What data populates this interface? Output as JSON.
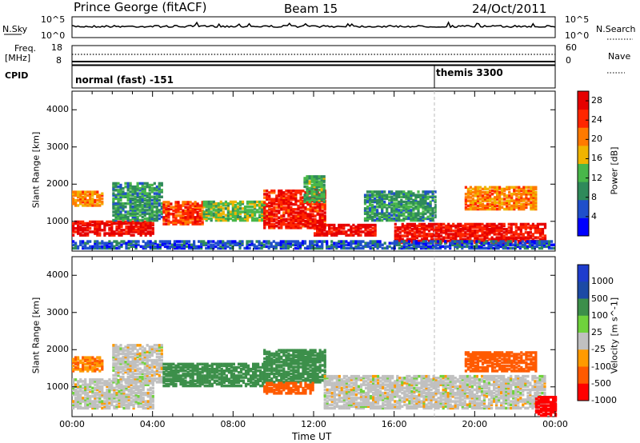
{
  "header": {
    "station": "Prince George (fitACF)",
    "beam": "Beam 15",
    "date": "24/Oct/2011"
  },
  "nsky_panel": {
    "left_label": "N.Sky",
    "right_label": "N.Search",
    "left_ticks": [
      "10^5",
      "10^0"
    ],
    "right_ticks": [
      "10^5",
      "10^0"
    ]
  },
  "freq_panel": {
    "left_label_top": "Freq.",
    "left_label_bottom": "[MHz]",
    "right_label": "Nave",
    "left_ticks": [
      "18",
      "8"
    ],
    "right_ticks": [
      "60",
      "0"
    ]
  },
  "cpid": {
    "label": "CPID",
    "modes": [
      {
        "name": "normal (fast) -151",
        "start_hour": 0
      },
      {
        "name": "themis 3300",
        "start_hour": 18
      }
    ]
  },
  "colors": {
    "power": [
      "#0000ff",
      "#1f4fcb",
      "#2f8a5a",
      "#48b74a",
      "#f0b400",
      "#ff7a00",
      "#ff2600",
      "#e60000"
    ],
    "velocity": [
      "#ff0000",
      "#ff5a00",
      "#ff9a00",
      "#c0c0c0",
      "#6fd23c",
      "#3c8f4a",
      "#1c4aa5",
      "#1e3ccd"
    ]
  },
  "chart_data": [
    {
      "type": "heatmap",
      "title": "",
      "xlabel": "",
      "ylabel": "Slant Range [km]",
      "xlim": [
        0,
        24
      ],
      "ylim": [
        200,
        4500
      ],
      "x_ticks": [
        "00:00",
        "04:00",
        "08:00",
        "12:00",
        "16:00",
        "20:00",
        "00:00"
      ],
      "y_ticks": [
        1000,
        2000,
        3000,
        4000
      ],
      "colorbar": {
        "label": "Power [dB]",
        "ticks": [
          4,
          8,
          12,
          16,
          20,
          24,
          28
        ],
        "range": [
          0,
          30
        ]
      },
      "patches": [
        {
          "hours": [
            0,
            1.5
          ],
          "range_km": [
            1400,
            1800
          ],
          "value": 20
        },
        {
          "hours": [
            0,
            4
          ],
          "range_km": [
            600,
            1000
          ],
          "value": 28
        },
        {
          "hours": [
            2,
            4.5
          ],
          "range_km": [
            1000,
            2000
          ],
          "value": 10
        },
        {
          "hours": [
            4.5,
            6.5
          ],
          "range_km": [
            900,
            1500
          ],
          "value": 24
        },
        {
          "hours": [
            6.5,
            9.5
          ],
          "range_km": [
            1000,
            1500
          ],
          "value": 14
        },
        {
          "hours": [
            9.5,
            12.5
          ],
          "range_km": [
            800,
            1800
          ],
          "value": 26
        },
        {
          "hours": [
            11.5,
            12.5
          ],
          "range_km": [
            1500,
            2200
          ],
          "value": 12
        },
        {
          "hours": [
            12,
            15
          ],
          "range_km": [
            600,
            900
          ],
          "value": 28
        },
        {
          "hours": [
            14.5,
            18
          ],
          "range_km": [
            1000,
            1800
          ],
          "value": 10
        },
        {
          "hours": [
            16,
            23.5
          ],
          "range_km": [
            400,
            900
          ],
          "value": 27
        },
        {
          "hours": [
            19.5,
            23
          ],
          "range_km": [
            1300,
            1900
          ],
          "value": 20
        },
        {
          "hours": [
            0,
            24
          ],
          "range_km": [
            250,
            450
          ],
          "value": 6
        }
      ]
    },
    {
      "type": "heatmap",
      "title": "",
      "xlabel": "Time UT",
      "ylabel": "Slant Range [km]",
      "xlim": [
        0,
        24
      ],
      "ylim": [
        200,
        4500
      ],
      "x_ticks": [
        "00:00",
        "04:00",
        "08:00",
        "12:00",
        "16:00",
        "20:00",
        "00:00"
      ],
      "y_ticks": [
        1000,
        2000,
        3000,
        4000
      ],
      "colorbar": {
        "label": "Velocity [m s^-1]",
        "ticks": [
          "1000",
          "500",
          "100",
          "25",
          "-25",
          "-100",
          "-500",
          "-1000"
        ]
      },
      "patches": [
        {
          "hours": [
            0,
            1.5
          ],
          "range_km": [
            1400,
            1800
          ],
          "value": -100
        },
        {
          "hours": [
            0,
            4
          ],
          "range_km": [
            400,
            1200
          ],
          "value": 0
        },
        {
          "hours": [
            2,
            4.5
          ],
          "range_km": [
            1100,
            2100
          ],
          "value": 0
        },
        {
          "hours": [
            4.5,
            9.5
          ],
          "range_km": [
            1000,
            1600
          ],
          "value": 400
        },
        {
          "hours": [
            9.5,
            12.5
          ],
          "range_km": [
            1100,
            2000
          ],
          "value": 300
        },
        {
          "hours": [
            9.5,
            12
          ],
          "range_km": [
            800,
            1100
          ],
          "value": -150
        },
        {
          "hours": [
            12.5,
            23.5
          ],
          "range_km": [
            400,
            1300
          ],
          "value": 0
        },
        {
          "hours": [
            19.5,
            23
          ],
          "range_km": [
            1400,
            1900
          ],
          "value": -200
        },
        {
          "hours": [
            23,
            24
          ],
          "range_km": [
            200,
            700
          ],
          "value": -900
        }
      ]
    }
  ]
}
